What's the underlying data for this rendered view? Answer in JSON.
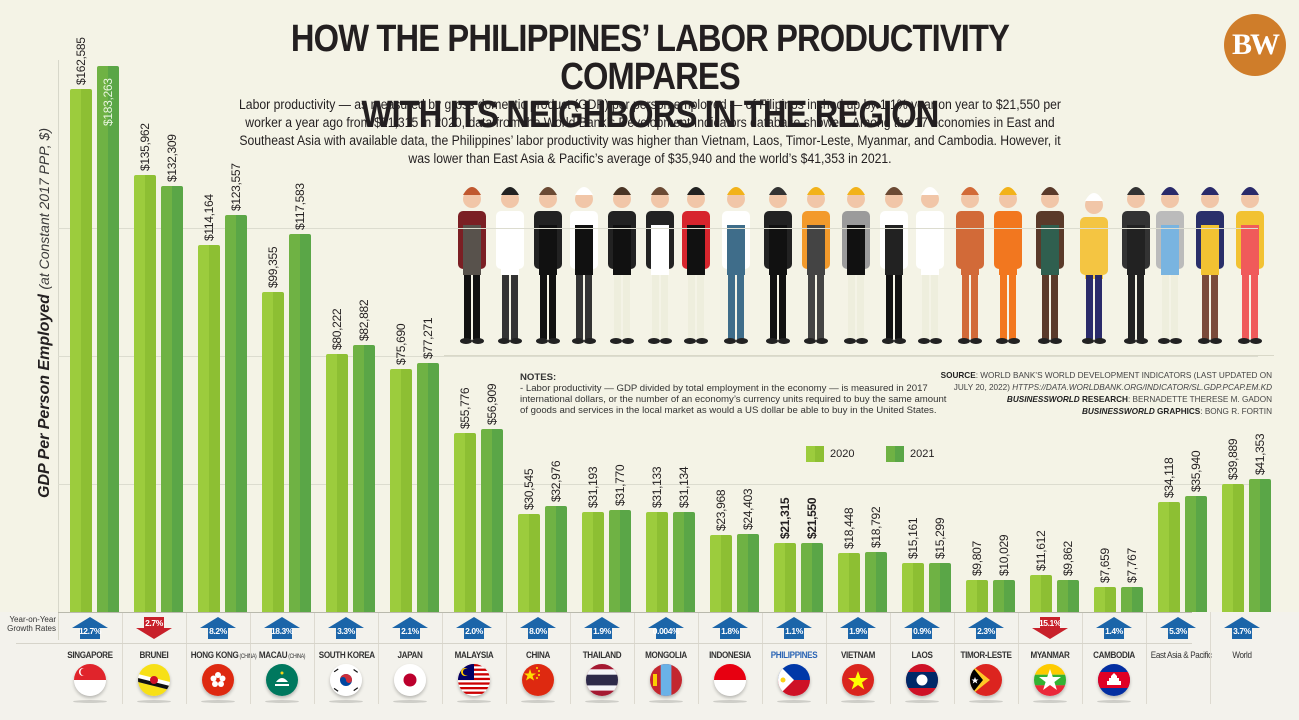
{
  "header": {
    "title_line1": "HOW THE PHILIPPINES’ LABOR PRODUCTIVITY COMPARES",
    "title_line2": "WITH ITS NEIGHBORS IN THE REGION",
    "subtitle": "Labor productivity — as measured by gross domestic product (GDP) per person employed — of Filipinos inched up by 1.1% year on year to $21,550 per worker a year ago from $21,315 in 2020, data from the World Bank’s Development Indicators database showed. Among the 17 economies in East and Southeast Asia with available data, the Philippines’ labor productivity was higher than Vietnam, Laos, Timor-Leste, Myanmar, and Cambodia. However, it was lower than East Asia & Pacific’s average of $35,940 and the world’s $41,353 in 2021.",
    "logo": "BW"
  },
  "axis": {
    "ylabel_bold": "GDP Per Person Employed",
    "ylabel_rest": "(at Constant 2017 PPP, $)",
    "growth_row_label_1": "Year-on-Year",
    "growth_row_label_2": "Growth Rates"
  },
  "legend": {
    "y2020": "2020",
    "y2021": "2021"
  },
  "notes": {
    "heading": "NOTES:",
    "body": "- Labor productivity — GDP divided by total employment in the economy — is measured in 2017 international dollars, or the number of an economy’s currency units required to buy the same amount of goods and services in the local market as would a US dollar be able to buy in the United States."
  },
  "source": {
    "source_label": "SOURCE",
    "source_text": ": WORLD BANK’S WORLD DEVELOPMENT INDICATORS (LAST UPDATED ON",
    "source_text2": "JULY 20, 2022)",
    "source_url": "HTTPS://DATA.WORLDBANK.ORG/INDICATOR/SL.GDP.PCAP.EM.KD",
    "research_brand": "BUSINESSWORLD",
    "research_label": "RESEARCH",
    "research_name": ": BERNADETTE THERESE M. GADON",
    "graphics_brand": "BUSINESSWORLD",
    "graphics_label": "GRAPHICS",
    "graphics_name": ": BONG R. FORTIN"
  },
  "colors": {
    "bar_2020": "#9ccc3d",
    "bar_2021": "#5aa647",
    "arrow_up": "#1b65a9",
    "arrow_down": "#c8202a",
    "philippines_label": "#2a64b4",
    "logo": "#cf7d2a",
    "background": "#f4f3e6"
  },
  "chart_data": {
    "type": "bar",
    "title": "How the Philippines’ labor productivity compares with its neighbors in the region",
    "xlabel": "",
    "ylabel": "GDP Per Person Employed (at Constant 2017 PPP, $)",
    "legend_position": "top-right inside plot",
    "grid": true,
    "ylim": [
      0,
      190000
    ],
    "categories": [
      "SINGAPORE",
      "BRUNEI",
      "HONG KONG (CHINA)",
      "MACAU (CHINA)",
      "SOUTH KOREA",
      "JAPAN",
      "MALAYSIA",
      "CHINA",
      "THAILAND",
      "MONGOLIA",
      "INDONESIA",
      "PHILIPPINES",
      "VIETNAM",
      "LAOS",
      "TIMOR-LESTE",
      "MYANMAR",
      "CAMBODIA",
      "East Asia & Pacific",
      "World"
    ],
    "series": [
      {
        "name": "2020",
        "values": [
          162585,
          135962,
          114164,
          99355,
          80222,
          75690,
          55776,
          30545,
          31193,
          31133,
          23968,
          21315,
          18448,
          15161,
          9807,
          11612,
          7659,
          34118,
          39889
        ]
      },
      {
        "name": "2021",
        "values": [
          183263,
          132309,
          123557,
          117583,
          82882,
          77271,
          56909,
          32976,
          31770,
          31134,
          24403,
          21550,
          18792,
          15299,
          10029,
          9862,
          7767,
          35940,
          41353
        ]
      }
    ],
    "labels_2020": [
      "$162,585",
      "$135,962",
      "$114,164",
      "$99,355",
      "$80,222",
      "$75,690",
      "$55,776",
      "$30,545",
      "$31,193",
      "$31,133",
      "$23,968",
      "$21,315",
      "$18,448",
      "$15,161",
      "$9,807",
      "$11,612",
      "$7,659",
      "$34,118",
      "$39,889"
    ],
    "labels_2021": [
      "$183,263",
      "$132,309",
      "$123,557",
      "$117,583",
      "$82,882",
      "$77,271",
      "$56,909",
      "$32,976",
      "$31,770",
      "$31,134",
      "$24,403",
      "$21,550",
      "$18,792",
      "$15,299",
      "$10,029",
      "$9,862",
      "$7,767",
      "$35,940",
      "$41,353"
    ],
    "growth_rates": [
      "12.7%",
      "2.7%",
      "8.2%",
      "18.3%",
      "3.3%",
      "2.1%",
      "2.0%",
      "8.0%",
      "1.9%",
      "0.004%",
      "1.8%",
      "1.1%",
      "1.9%",
      "0.9%",
      "2.3%",
      "15.1%",
      "1.4%",
      "5.3%",
      "3.7%"
    ],
    "growth_direction": [
      "up",
      "down",
      "up",
      "up",
      "up",
      "up",
      "up",
      "up",
      "up",
      "up",
      "up",
      "up",
      "up",
      "up",
      "up",
      "down",
      "up",
      "up",
      "up"
    ]
  },
  "countries": [
    {
      "name": "SINGAPORE",
      "suffix": "",
      "flag": "singapore-flag"
    },
    {
      "name": "BRUNEI",
      "suffix": "",
      "flag": "brunei-flag"
    },
    {
      "name": "HONG KONG",
      "suffix": "(CHINA)",
      "flag": "hong-kong-flag"
    },
    {
      "name": "MACAU",
      "suffix": "(CHINA)",
      "flag": "macau-flag"
    },
    {
      "name": "SOUTH KOREA",
      "suffix": "",
      "flag": "south-korea-flag"
    },
    {
      "name": "JAPAN",
      "suffix": "",
      "flag": "japan-flag"
    },
    {
      "name": "MALAYSIA",
      "suffix": "",
      "flag": "malaysia-flag"
    },
    {
      "name": "CHINA",
      "suffix": "",
      "flag": "china-flag"
    },
    {
      "name": "THAILAND",
      "suffix": "",
      "flag": "thailand-flag"
    },
    {
      "name": "MONGOLIA",
      "suffix": "",
      "flag": "mongolia-flag"
    },
    {
      "name": "INDONESIA",
      "suffix": "",
      "flag": "indonesia-flag"
    },
    {
      "name": "PHILIPPINES",
      "suffix": "",
      "flag": "philippines-flag"
    },
    {
      "name": "VIETNAM",
      "suffix": "",
      "flag": "vietnam-flag"
    },
    {
      "name": "LAOS",
      "suffix": "",
      "flag": "laos-flag"
    },
    {
      "name": "TIMOR-LESTE",
      "suffix": "",
      "flag": "timor-leste-flag"
    },
    {
      "name": "MYANMAR",
      "suffix": "",
      "flag": "myanmar-flag"
    },
    {
      "name": "CAMBODIA",
      "suffix": "",
      "flag": "cambodia-flag"
    },
    {
      "name": "East Asia & Pacific",
      "suffix": "",
      "flag": ""
    },
    {
      "name": "World",
      "suffix": "",
      "flag": ""
    }
  ],
  "illustration": {
    "name": "workers-illustration",
    "count": 23
  }
}
